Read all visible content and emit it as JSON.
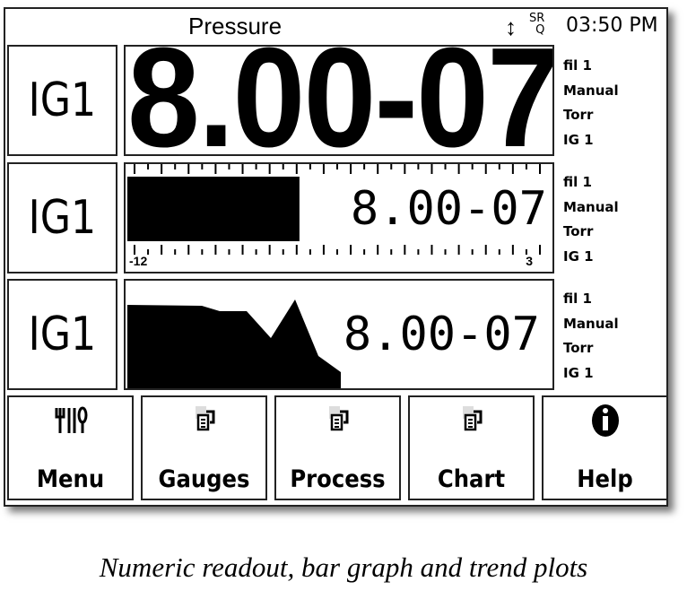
{
  "header": {
    "title": "Pressure",
    "status_sr": "SR",
    "status_q": "Q",
    "time": "03:50 PM"
  },
  "rows": [
    {
      "gauge": "IG1",
      "value": "8.00-07",
      "info": [
        "fil 1",
        "Manual",
        "Torr",
        "IG 1"
      ]
    },
    {
      "gauge": "IG1",
      "value": "8.00-07",
      "info": [
        "fil 1",
        "Manual",
        "Torr",
        "IG 1"
      ],
      "bar": {
        "scale_min": "-12",
        "scale_max": "3",
        "fill_fraction": 0.41
      }
    },
    {
      "gauge": "IG1",
      "value": "8.00-07",
      "info": [
        "fil 1",
        "Manual",
        "Torr",
        "IG 1"
      ]
    }
  ],
  "buttons": [
    {
      "label": "Menu",
      "icon": "utensils-icon"
    },
    {
      "label": "Gauges",
      "icon": "document-edit-icon"
    },
    {
      "label": "Process",
      "icon": "document-edit-icon"
    },
    {
      "label": "Chart",
      "icon": "document-edit-icon"
    },
    {
      "label": "Help",
      "icon": "info-icon"
    }
  ],
  "caption": "Numeric readout, bar graph and trend plots"
}
